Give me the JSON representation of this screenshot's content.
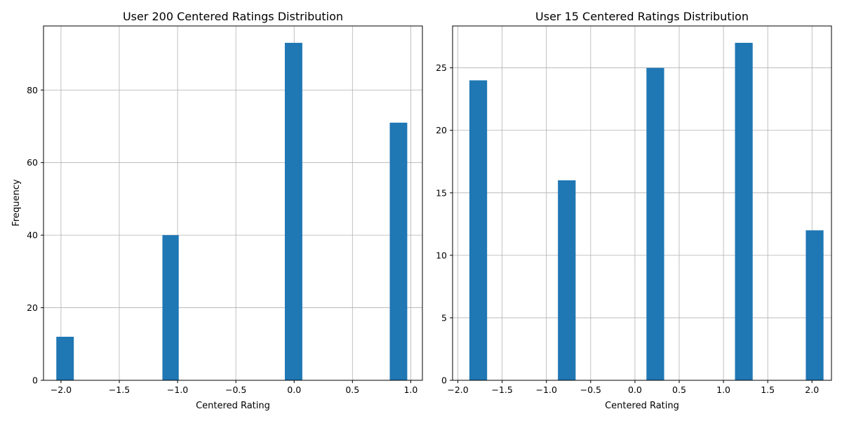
{
  "chart_data": [
    {
      "type": "bar",
      "title": "User 200 Centered Ratings Distribution",
      "xlabel": "Centered Rating",
      "ylabel": "Frequency",
      "xlim": [
        -2.15,
        1.1
      ],
      "ylim": [
        0,
        97.65
      ],
      "grid": true,
      "bar_color": "#1f77b4",
      "x_ticks": [
        -2.0,
        -1.5,
        -1.0,
        -0.5,
        0.0,
        0.5,
        1.0
      ],
      "x_tick_labels": [
        "−2.0",
        "−1.5",
        "−1.0",
        "−0.5",
        "0.0",
        "0.5",
        "1.0"
      ],
      "y_ticks": [
        0,
        20,
        40,
        60,
        80
      ],
      "y_tick_labels": [
        "0",
        "20",
        "40",
        "60",
        "80"
      ],
      "bars": [
        {
          "x0": -2.04,
          "x1": -1.89,
          "value": 12
        },
        {
          "x0": -1.13,
          "x1": -0.99,
          "value": 40
        },
        {
          "x0": -0.08,
          "x1": 0.07,
          "value": 93
        },
        {
          "x0": 0.82,
          "x1": 0.97,
          "value": 71
        }
      ]
    },
    {
      "type": "bar",
      "title": "User 15 Centered Ratings Distribution",
      "xlabel": "Centered Rating",
      "ylabel": "",
      "xlim": [
        -2.06,
        2.22
      ],
      "ylim": [
        0,
        28.35
      ],
      "grid": true,
      "bar_color": "#1f77b4",
      "x_ticks": [
        -2.0,
        -1.5,
        -1.0,
        -0.5,
        0.0,
        0.5,
        1.0,
        1.5,
        2.0
      ],
      "x_tick_labels": [
        "−2.0",
        "−1.5",
        "−1.0",
        "−0.5",
        "0.0",
        "0.5",
        "1.0",
        "1.5",
        "2.0"
      ],
      "y_ticks": [
        0,
        5,
        10,
        15,
        20,
        25
      ],
      "y_tick_labels": [
        "0",
        "5",
        "10",
        "15",
        "20",
        "25"
      ],
      "bars": [
        {
          "x0": -1.87,
          "x1": -1.67,
          "value": 24
        },
        {
          "x0": -0.87,
          "x1": -0.67,
          "value": 16
        },
        {
          "x0": 0.13,
          "x1": 0.33,
          "value": 25
        },
        {
          "x0": 1.13,
          "x1": 1.33,
          "value": 27
        },
        {
          "x0": 1.93,
          "x1": 2.13,
          "value": 12
        }
      ]
    }
  ]
}
